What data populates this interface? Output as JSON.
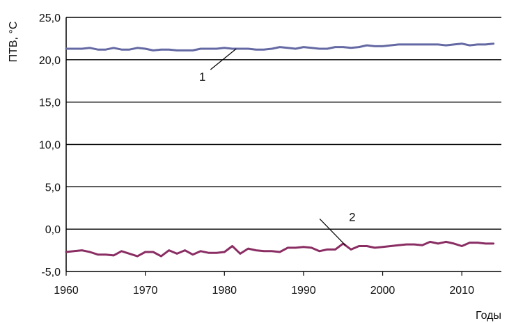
{
  "chart_data": {
    "type": "line",
    "title": "",
    "ylabel": "ПТВ, °C",
    "xlabel": "Годы",
    "xlim": [
      1960,
      2015
    ],
    "ylim": [
      -5,
      25
    ],
    "grid": "horizontal",
    "x_ticks": [
      1960,
      1970,
      1980,
      1990,
      2000,
      2010
    ],
    "x_tick_labels": [
      "1960",
      "1970",
      "1980",
      "1990",
      "2000",
      "2010"
    ],
    "y_ticks": [
      -5,
      0,
      5,
      10,
      15,
      20,
      25
    ],
    "y_tick_labels": [
      "-5,0",
      "0,0",
      "5,0",
      "10,0",
      "15,0",
      "20,0",
      "25,0"
    ],
    "x": [
      1960,
      1961,
      1962,
      1963,
      1964,
      1965,
      1966,
      1967,
      1968,
      1969,
      1970,
      1971,
      1972,
      1973,
      1974,
      1975,
      1976,
      1977,
      1978,
      1979,
      1980,
      1981,
      1982,
      1983,
      1984,
      1985,
      1986,
      1987,
      1988,
      1989,
      1990,
      1991,
      1992,
      1993,
      1994,
      1995,
      1996,
      1997,
      1998,
      1999,
      2000,
      2001,
      2002,
      2003,
      2004,
      2005,
      2006,
      2007,
      2008,
      2009,
      2010,
      2011,
      2012,
      2013,
      2014
    ],
    "series": [
      {
        "label": "1",
        "color": "#6469a3",
        "values": [
          21.3,
          21.3,
          21.3,
          21.4,
          21.2,
          21.2,
          21.4,
          21.2,
          21.2,
          21.4,
          21.3,
          21.1,
          21.2,
          21.2,
          21.1,
          21.1,
          21.1,
          21.3,
          21.3,
          21.3,
          21.4,
          21.3,
          21.3,
          21.3,
          21.2,
          21.2,
          21.3,
          21.5,
          21.4,
          21.3,
          21.5,
          21.4,
          21.3,
          21.3,
          21.5,
          21.5,
          21.4,
          21.5,
          21.7,
          21.6,
          21.6,
          21.7,
          21.8,
          21.8,
          21.8,
          21.8,
          21.8,
          21.8,
          21.7,
          21.8,
          21.9,
          21.7,
          21.8,
          21.8,
          21.9
        ]
      },
      {
        "label": "2",
        "color": "#8a2d63",
        "values": [
          -2.7,
          -2.6,
          -2.5,
          -2.7,
          -3.0,
          -3.0,
          -3.1,
          -2.6,
          -2.9,
          -3.2,
          -2.7,
          -2.7,
          -3.2,
          -2.5,
          -2.9,
          -2.5,
          -3.0,
          -2.6,
          -2.8,
          -2.8,
          -2.7,
          -2.0,
          -2.9,
          -2.3,
          -2.5,
          -2.6,
          -2.6,
          -2.7,
          -2.2,
          -2.2,
          -2.1,
          -2.2,
          -2.6,
          -2.4,
          -2.4,
          -1.7,
          -2.4,
          -2.0,
          -2.0,
          -2.2,
          -2.1,
          -2.0,
          -1.9,
          -1.8,
          -1.8,
          -1.9,
          -1.5,
          -1.7,
          -1.5,
          -1.7,
          -2.0,
          -1.6,
          -1.6,
          -1.7,
          -1.7
        ]
      }
    ],
    "annotations": [
      {
        "text": "1",
        "series": 0,
        "point_x": 1981.5
      },
      {
        "text": "2",
        "series": 1,
        "point_x": 1995.3
      }
    ]
  }
}
